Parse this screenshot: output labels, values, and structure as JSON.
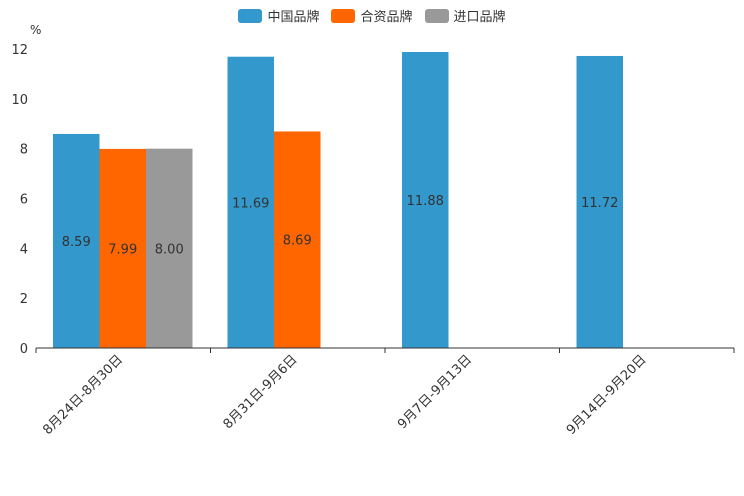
{
  "chart_data": {
    "type": "bar",
    "title": "",
    "xlabel": "",
    "ylabel": "%",
    "ylim": [
      0,
      12
    ],
    "yticks": [
      0,
      2,
      4,
      6,
      8,
      10,
      12
    ],
    "categories": [
      "8月24日-8月30日",
      "8月31日-9月6日",
      "9月7日-9月13日",
      "9月14日-9月20日"
    ],
    "series": [
      {
        "name": "中国品牌",
        "color": "#3398cc",
        "values": [
          8.59,
          11.69,
          11.88,
          11.72
        ]
      },
      {
        "name": "合资品牌",
        "color": "#ff6600",
        "values": [
          7.99,
          8.69,
          null,
          null
        ]
      },
      {
        "name": "进口品牌",
        "color": "#999999",
        "values": [
          8.0,
          null,
          null,
          null
        ]
      }
    ],
    "legend_position": "top-center"
  }
}
